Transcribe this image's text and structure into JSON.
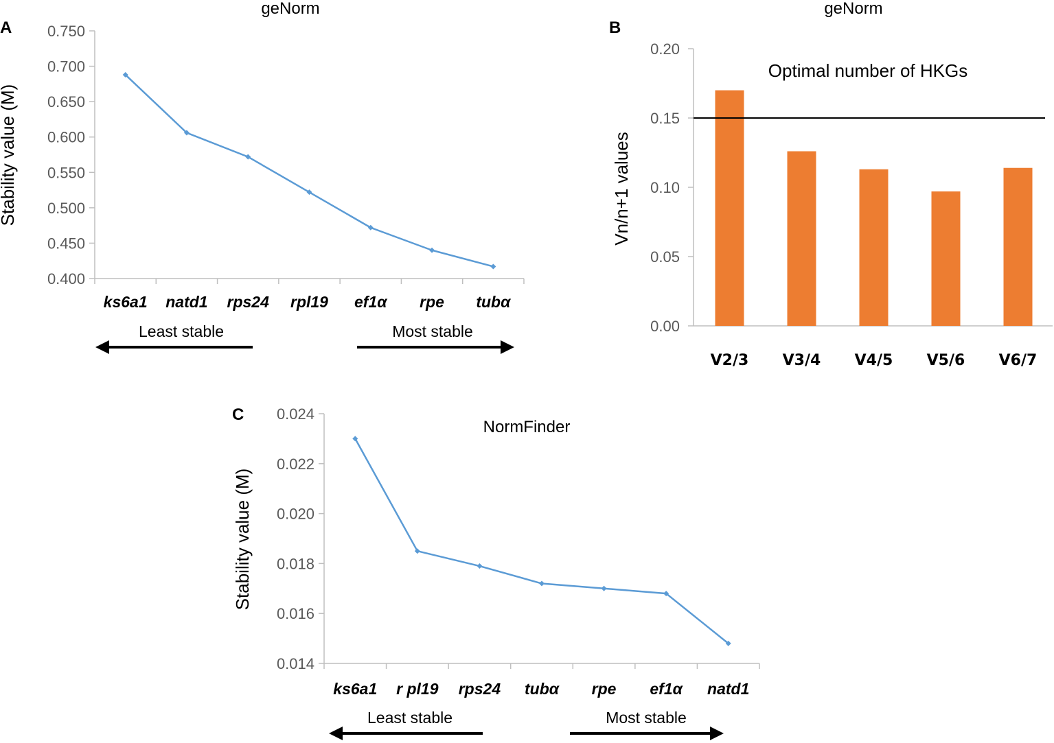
{
  "panel_a": {
    "panel_label": "A",
    "title": "geNorm",
    "ylabel": "Stability value (M)",
    "ytick_labels": [
      "0.400",
      "0.450",
      "0.500",
      "0.550",
      "0.600",
      "0.650",
      "0.700",
      "0.750"
    ],
    "left_note": "Least stable",
    "right_note": "Most stable"
  },
  "panel_b": {
    "panel_label": "B",
    "title": "geNorm",
    "ylabel": "Vn/n+1 values",
    "annotation": "Optimal number of HKGs",
    "ytick_labels": [
      "0.00",
      "0.05",
      "0.10",
      "0.15",
      "0.20"
    ]
  },
  "panel_c": {
    "panel_label": "C",
    "title": "NormFinder",
    "ylabel": "Stability value (M)",
    "ytick_labels": [
      "0.014",
      "0.016",
      "0.018",
      "0.020",
      "0.022",
      "0.024"
    ],
    "left_note": "Least stable",
    "right_note": "Most stable"
  },
  "chart_data": [
    {
      "type": "line",
      "title": "geNorm",
      "xlabel": "",
      "ylabel": "Stability value (M)",
      "categories": [
        "ks6a1",
        "natd1",
        "rps24",
        "rpl19",
        "ef1α",
        "rpe",
        "tubα"
      ],
      "values": [
        0.688,
        0.606,
        0.572,
        0.522,
        0.472,
        0.44,
        0.417
      ],
      "ylim": [
        0.4,
        0.75
      ],
      "series_color": "#5b9bd5"
    },
    {
      "type": "bar",
      "title": "geNorm",
      "xlabel": "",
      "ylabel": "Vn/n+1 values",
      "categories": [
        "V2/3",
        "V3/4",
        "V4/5",
        "V5/6",
        "V6/7"
      ],
      "values": [
        0.17,
        0.126,
        0.113,
        0.097,
        0.114
      ],
      "ylim": [
        0,
        0.2
      ],
      "threshold": 0.15,
      "bar_color": "#ed7d31"
    },
    {
      "type": "line",
      "title": "NormFinder",
      "xlabel": "",
      "ylabel": "Stability value (M)",
      "categories": [
        "ks6a1",
        "r pl19",
        "rps24",
        "tubα",
        "rpe",
        "ef1α",
        "natd1"
      ],
      "values": [
        0.023,
        0.0185,
        0.0179,
        0.0172,
        0.017,
        0.0168,
        0.0148
      ],
      "ylim": [
        0.014,
        0.024
      ],
      "series_color": "#5b9bd5"
    }
  ]
}
